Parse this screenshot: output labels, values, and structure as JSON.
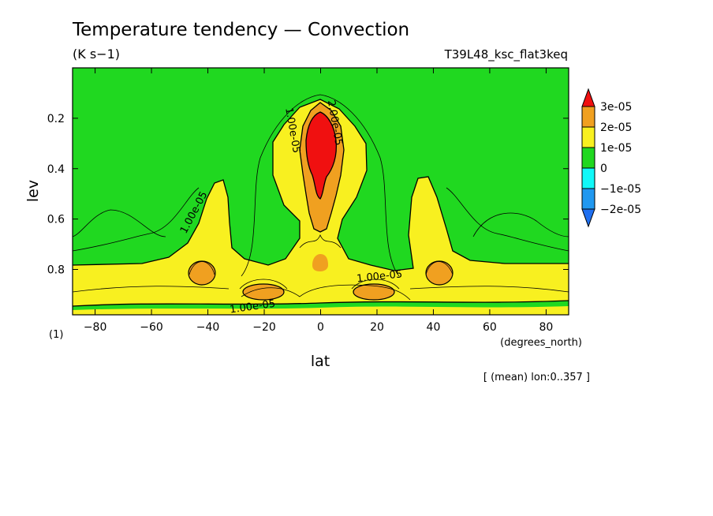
{
  "chart_data": {
    "type": "heatmap",
    "title": "Temperature tendency — Convection",
    "units": "(K s−1)",
    "experiment": "T39L48_ksc_flat3keq",
    "xlabel": "lat",
    "xunits": "(degrees_north)",
    "ylabel": "lev",
    "yunits": "(1)",
    "note": "[ (mean) lon:0..357 ]",
    "xlim": [
      -88,
      88
    ],
    "ylim": [
      0.0,
      0.98
    ],
    "y_inverted": true,
    "xticks": [
      -80,
      -60,
      -40,
      -20,
      0,
      20,
      40,
      60,
      80
    ],
    "xtick_labels": [
      "−80",
      "−60",
      "−40",
      "−20",
      "0",
      "20",
      "40",
      "60",
      "80"
    ],
    "yticks": [
      0.2,
      0.4,
      0.6,
      0.8
    ],
    "ytick_labels": [
      "0.2",
      "0.4",
      "0.6",
      "0.8"
    ],
    "colorbar": {
      "levels": [
        {
          "label": "3e-05",
          "value": 3e-05,
          "color": "#f01010"
        },
        {
          "label": "2e-05",
          "value": 2e-05,
          "color": "#f0a020"
        },
        {
          "label": "1e-05",
          "value": 1e-05,
          "color": "#f8f020"
        },
        {
          "label": "0",
          "value": 0,
          "color": "#20d820"
        },
        {
          "label": "−1e-05",
          "value": -1e-05,
          "color": "#10f8f8"
        },
        {
          "label": "−2e-05",
          "value": -2e-05,
          "color": "#2098f0"
        }
      ],
      "top_color": "#f01010",
      "bottom_color": "#2070f0"
    },
    "contour_labels": [
      {
        "text": "2.00e-05",
        "lat": 4,
        "lev": 0.22,
        "rotate": 80
      },
      {
        "text": "1.00e-05",
        "lat": -11,
        "lev": 0.25,
        "rotate": 80
      },
      {
        "text": "1.00e-05",
        "lat": -44,
        "lev": 0.58,
        "rotate": -62
      },
      {
        "text": "1.00e-05",
        "lat": 21,
        "lev": 0.84,
        "rotate": -6
      },
      {
        "text": "1.00e-05",
        "lat": -24,
        "lev": 0.96,
        "rotate": -8
      }
    ],
    "regions": [
      {
        "name": "upper-green",
        "level": "0 to 1e-05",
        "color": "#20d820"
      },
      {
        "name": "low-level-yellow",
        "level": "1e-05 to 2e-05",
        "color": "#f8f020"
      },
      {
        "name": "equatorial-core",
        "level": ">3e-05",
        "color": "#f01010",
        "lat": 0,
        "lev": 0.32
      },
      {
        "name": "orange-blob",
        "level": "2e-05 to 3e-05",
        "color": "#f0a020",
        "lat": -42,
        "lev": 0.82
      },
      {
        "name": "orange-blob",
        "level": "2e-05 to 3e-05",
        "color": "#f0a020",
        "lat": 42,
        "lev": 0.82
      },
      {
        "name": "orange-blob",
        "level": "2e-05 to 3e-05",
        "color": "#f0a020",
        "lat": -20,
        "lev": 0.9
      },
      {
        "name": "orange-blob",
        "level": "2e-05 to 3e-05",
        "color": "#f0a020",
        "lat": 19,
        "lev": 0.9
      }
    ]
  }
}
